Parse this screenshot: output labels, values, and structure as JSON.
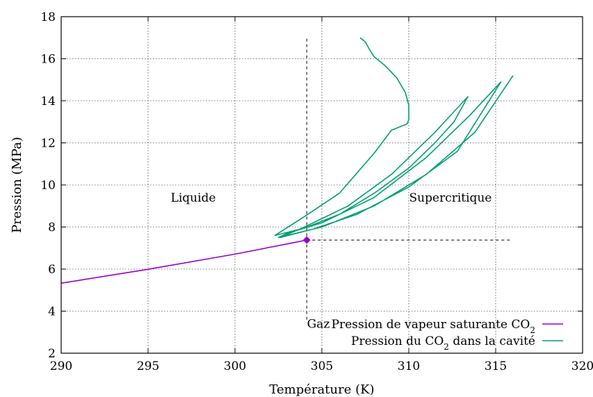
{
  "chart_data": {
    "type": "line",
    "xlabel": "Température (K)",
    "ylabel": "Pression (MPa)",
    "xlim": [
      290,
      320
    ],
    "ylim": [
      2,
      18
    ],
    "xticks": [
      290,
      295,
      300,
      305,
      310,
      315,
      320
    ],
    "yticks": [
      2,
      4,
      6,
      8,
      10,
      12,
      14,
      16,
      18
    ],
    "grid": true,
    "legend_position": "bottom-right",
    "regions": [
      {
        "label": "Liquide",
        "x": 297.6,
        "y": 9.2
      },
      {
        "label": "Supercritique",
        "x": 312.4,
        "y": 9.2
      },
      {
        "label": "Gaz",
        "x": 304.8,
        "y": 3.2
      }
    ],
    "critical_point": {
      "x": 304.13,
      "y": 7.38,
      "color": "#9400d3"
    },
    "reference_lines": [
      {
        "x": [
          304.13,
          304.13
        ],
        "y": [
          3.6,
          17.0
        ]
      },
      {
        "x": [
          304.13,
          315.9
        ],
        "y": [
          7.38,
          7.38
        ]
      }
    ],
    "series": [
      {
        "name_prefix": "Pression de vapeur saturante CO",
        "name_subscript": "2",
        "name_suffix": "",
        "color": "#9400d3",
        "x": [
          290,
          295,
          300,
          304.13
        ],
        "y": [
          5.33,
          5.99,
          6.71,
          7.38
        ],
        "markers": "end-diamond"
      },
      {
        "name_prefix": "Pression du CO",
        "name_subscript": "2",
        "name_suffix": " dans la cavité",
        "color": "#009e73",
        "x": [
          307.2,
          307.5,
          307.7,
          308.0,
          308.6,
          309.3,
          309.8,
          310.0,
          310.0,
          309.9,
          309.6,
          309.0,
          308.0,
          306.0,
          304.0,
          302.3,
          304.0,
          306.0,
          308.0,
          310.0,
          311.5,
          312.6,
          313.4,
          311.5,
          309.0,
          306.5,
          304.0,
          302.6,
          304.5,
          307.0,
          310.0,
          312.8,
          315.3,
          313.5,
          311.0,
          308.0,
          305.0,
          303.0,
          302.5,
          305.0,
          308.0,
          311.0,
          313.8,
          316.0
        ],
        "y": [
          17.0,
          16.8,
          16.5,
          16.1,
          15.7,
          15.1,
          14.4,
          13.8,
          13.1,
          12.9,
          12.8,
          12.6,
          11.5,
          9.6,
          8.5,
          7.6,
          7.95,
          8.6,
          9.6,
          10.8,
          12.0,
          13.0,
          14.2,
          12.5,
          10.5,
          9.0,
          8.0,
          7.5,
          7.9,
          8.6,
          9.9,
          11.6,
          14.9,
          13.3,
          11.3,
          9.4,
          8.2,
          7.7,
          7.5,
          8.0,
          9.0,
          10.5,
          12.5,
          15.2
        ]
      }
    ]
  }
}
